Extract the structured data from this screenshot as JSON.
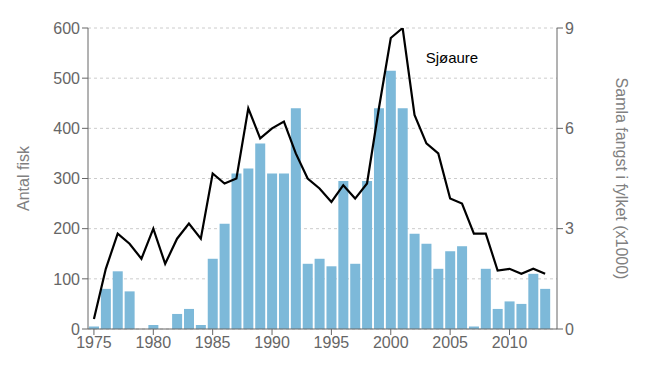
{
  "chart_data": {
    "type": "bar",
    "x": [
      1975,
      1976,
      1977,
      1978,
      1979,
      1980,
      1981,
      1982,
      1983,
      1984,
      1985,
      1986,
      1987,
      1988,
      1989,
      1990,
      1991,
      1992,
      1993,
      1994,
      1995,
      1996,
      1997,
      1998,
      1999,
      2000,
      2001,
      2002,
      2003,
      2004,
      2005,
      2006,
      2007,
      2008,
      2009,
      2010,
      2011,
      2012,
      2013
    ],
    "series": [
      {
        "type": "bar",
        "color": "#7DB9D9",
        "values": [
          5,
          80,
          115,
          75,
          0,
          8,
          0,
          30,
          40,
          8,
          140,
          210,
          310,
          320,
          370,
          310,
          310,
          440,
          130,
          140,
          125,
          295,
          130,
          295,
          440,
          515,
          440,
          190,
          170,
          120,
          155,
          165,
          5,
          120,
          40,
          55,
          50,
          110,
          80
        ]
      },
      {
        "type": "line",
        "color": "#000000",
        "axis": "y2",
        "values": [
          0.3,
          1.8,
          2.85,
          2.55,
          2.1,
          3.0,
          1.95,
          2.7,
          3.15,
          2.7,
          4.65,
          4.35,
          4.5,
          6.6,
          5.7,
          6.0,
          6.2,
          5.25,
          4.5,
          4.2,
          3.8,
          4.3,
          3.9,
          4.35,
          6.6,
          8.7,
          9.0,
          6.4,
          5.55,
          5.25,
          3.9,
          3.75,
          2.85,
          2.85,
          1.75,
          1.8,
          1.65,
          1.8,
          1.65
        ]
      }
    ],
    "xlim": [
      1974.5,
      2014.0
    ],
    "xticks": [
      1975,
      1980,
      1985,
      1990,
      1995,
      2000,
      2005,
      2010
    ],
    "ylim": [
      0,
      600
    ],
    "yticks": [
      0,
      100,
      200,
      300,
      400,
      500,
      600
    ],
    "y2lim": [
      0,
      9
    ],
    "y2ticks": [
      0,
      3,
      6,
      9
    ],
    "ylabel": "Antal fisk",
    "y2label": "Samla fangst i fylket  (x1000)",
    "annotation": "Sjøaure",
    "grid": true
  }
}
